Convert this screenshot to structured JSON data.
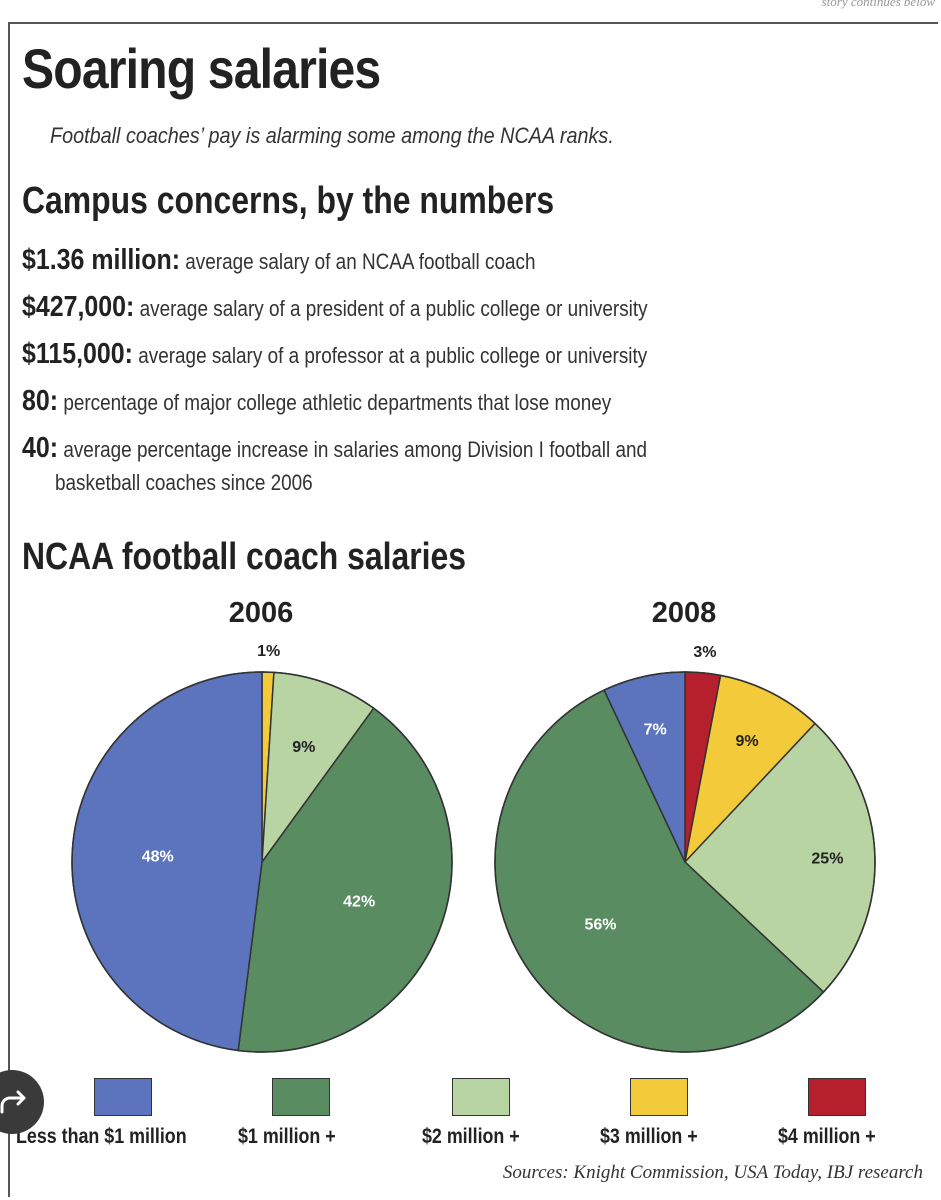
{
  "header": {
    "fragment": "story continues below",
    "title": "Soaring salaries",
    "subtitle": "Football coaches’ pay is alarming some among the NCAA ranks."
  },
  "numbers": {
    "heading": "Campus concerns, by the numbers",
    "items": [
      {
        "value": "$1.36 million:",
        "text": "average salary of an NCAA football coach"
      },
      {
        "value": "$427,000:",
        "text": "average salary of a president of a public college or university"
      },
      {
        "value": "$115,000:",
        "text": "average salary of a professor at a public college or university"
      },
      {
        "value": "80:",
        "text": "percentage of major college athletic departments that lose money"
      },
      {
        "value": "40:",
        "text": "average percentage increase in salaries among Division I football and",
        "continuation": "basketball coaches since 2006"
      }
    ]
  },
  "chart_section": {
    "heading": "NCAA football coach salaries"
  },
  "chart_data": [
    {
      "type": "pie",
      "title": "2006",
      "categories": [
        "Less than $1 million",
        "$1 million +",
        "$2 million +",
        "$3 million +",
        "$4 million +"
      ],
      "values": [
        48,
        42,
        9,
        1,
        0
      ],
      "labels": [
        "48%",
        "42%",
        "9%",
        "1%",
        ""
      ]
    },
    {
      "type": "pie",
      "title": "2008",
      "categories": [
        "Less than $1 million",
        "$1 million +",
        "$2 million +",
        "$3 million +",
        "$4 million +"
      ],
      "values": [
        7,
        56,
        25,
        9,
        3
      ],
      "labels": [
        "7%",
        "56%",
        "25%",
        "9%",
        "3%"
      ]
    }
  ],
  "legend": [
    {
      "label": "Less than $1 million",
      "color": "#5b74bd"
    },
    {
      "label": "$1 million +",
      "color": "#5a8c62"
    },
    {
      "label": "$2 million +",
      "color": "#b8d4a2"
    },
    {
      "label": "$3 million +",
      "color": "#f3cb3a"
    },
    {
      "label": "$4 million +",
      "color": "#b5202c"
    }
  ],
  "sources": "Sources: Knight Commission, USA Today, IBJ research",
  "overlay": {
    "icon": "share-icon"
  }
}
